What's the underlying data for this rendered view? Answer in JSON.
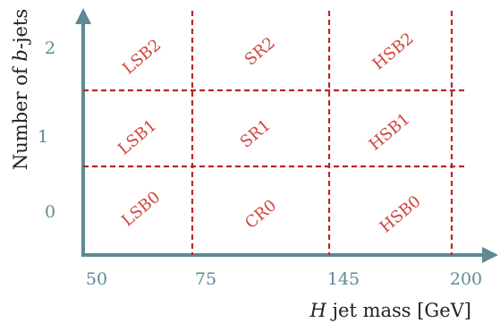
{
  "diagram": {
    "x_axis": {
      "title_italic": "H",
      "title_rest": " jet mass [GeV]",
      "ticks": [
        "50",
        "75",
        "145",
        "200"
      ]
    },
    "y_axis": {
      "title_prefix": "Number of ",
      "title_italic": "b",
      "title_suffix": "-jets",
      "ticks": [
        "2",
        "1",
        "0"
      ]
    },
    "regions": {
      "row2": [
        "LSB2",
        "SR2",
        "HSB2"
      ],
      "row1": [
        "LSB1",
        "SR1",
        "HSB1"
      ],
      "row0": [
        "LSB0",
        "CR0",
        "HSB0"
      ]
    },
    "colors": {
      "axis": "#5f8a93",
      "divider": "#b8282a",
      "region_label": "#d0463f",
      "title": "#222222"
    }
  }
}
